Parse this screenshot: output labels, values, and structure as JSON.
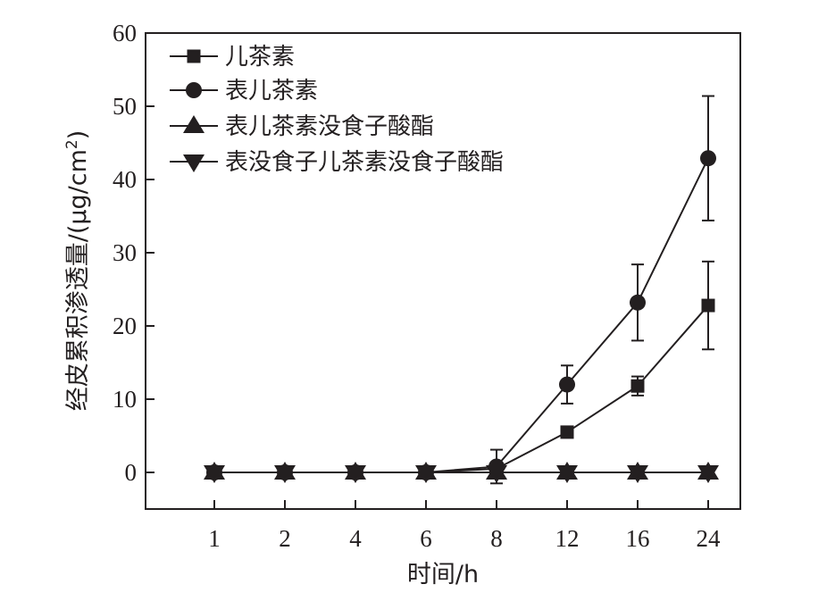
{
  "chart_data": {
    "type": "line",
    "xlabel": "时间/h",
    "ylabel_main": "经皮累积渗透量/(μg/cm",
    "ylabel_sup": "2",
    "ylabel_close": ")",
    "categories": [
      "1",
      "2",
      "4",
      "6",
      "8",
      "12",
      "16",
      "24"
    ],
    "ylim": [
      -5,
      60
    ],
    "yticks": [
      0,
      10,
      20,
      30,
      40,
      50,
      60
    ],
    "legend_position": "top-left",
    "grid": false,
    "series": [
      {
        "name": "儿茶素",
        "marker": "square",
        "values": [
          0,
          0,
          0,
          0,
          0.5,
          5.5,
          11.8,
          22.8
        ],
        "errors": [
          0,
          0,
          0,
          0,
          0.3,
          0.4,
          1.3,
          6.0
        ]
      },
      {
        "name": "表儿茶素",
        "marker": "circle",
        "values": [
          0,
          0,
          0,
          0,
          0.8,
          12.0,
          23.2,
          42.9
        ],
        "errors": [
          0,
          0,
          0,
          0,
          2.3,
          2.6,
          5.2,
          8.5
        ]
      },
      {
        "name": "表儿茶素没食子酸酯",
        "marker": "triangle-up",
        "values": [
          0,
          0,
          0,
          0,
          0,
          0,
          0,
          0
        ],
        "errors": [
          0,
          0,
          0,
          0,
          0,
          0,
          0,
          0
        ]
      },
      {
        "name": "表没食子儿茶素没食子酸酯",
        "marker": "triangle-down",
        "values": [
          0,
          0,
          0,
          0,
          0,
          0,
          0,
          0
        ],
        "errors": [
          0,
          0,
          0,
          0,
          0,
          0,
          0,
          0
        ]
      }
    ],
    "colors": {
      "ink": "#231f20"
    }
  }
}
